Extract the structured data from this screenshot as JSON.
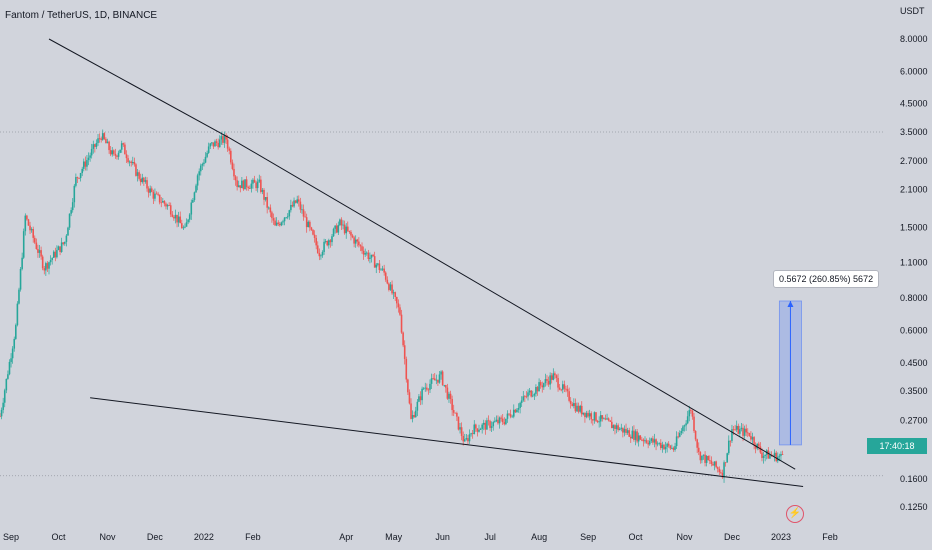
{
  "header": {
    "symbol": "Fantom / TetherUS, 1D, BINANCE",
    "currency": "USDT"
  },
  "chart_data": {
    "type": "candlestick",
    "scale": "log",
    "y_ticks": [
      "8.0000",
      "6.0000",
      "4.5000",
      "3.5000",
      "2.7000",
      "2.1000",
      "1.5000",
      "1.1000",
      "0.8000",
      "0.6000",
      "0.4500",
      "0.3500",
      "0.2700",
      "0.1600",
      "0.1250"
    ],
    "y_tick_values": [
      8.0,
      6.0,
      4.5,
      3.5,
      2.7,
      2.1,
      1.5,
      1.1,
      0.8,
      0.6,
      0.45,
      0.35,
      0.27,
      0.16,
      0.125
    ],
    "x_ticks": [
      "Sep",
      "Oct",
      "Nov",
      "Dec",
      "2022",
      "Feb",
      "Apr",
      "May",
      "Jun",
      "Jul",
      "Aug",
      "Sep",
      "Oct",
      "Nov",
      "Dec",
      "2023",
      "Feb"
    ],
    "x_tick_dates": [
      "2021-09-01",
      "2021-10-01",
      "2021-11-01",
      "2021-12-01",
      "2022-01-01",
      "2022-02-01",
      "2022-04-01",
      "2022-05-01",
      "2022-06-01",
      "2022-07-01",
      "2022-08-01",
      "2022-09-01",
      "2022-10-01",
      "2022-11-01",
      "2022-12-01",
      "2023-01-01",
      "2023-02-01"
    ],
    "price_path": [
      [
        "2021-08-25",
        0.28
      ],
      [
        "2021-09-04",
        0.62
      ],
      [
        "2021-09-10",
        1.65
      ],
      [
        "2021-09-22",
        1.05
      ],
      [
        "2021-10-05",
        1.32
      ],
      [
        "2021-10-12",
        2.3
      ],
      [
        "2021-10-28",
        3.4
      ],
      [
        "2021-11-05",
        2.8
      ],
      [
        "2021-11-10",
        3.1
      ],
      [
        "2021-11-20",
        2.4
      ],
      [
        "2021-11-30",
        2.0
      ],
      [
        "2021-12-10",
        1.8
      ],
      [
        "2021-12-20",
        1.45
      ],
      [
        "2021-12-28",
        2.4
      ],
      [
        "2022-01-05",
        3.1
      ],
      [
        "2022-01-15",
        3.3
      ],
      [
        "2022-01-22",
        2.2
      ],
      [
        "2022-02-05",
        2.2
      ],
      [
        "2022-02-15",
        1.5
      ],
      [
        "2022-03-01",
        1.9
      ],
      [
        "2022-03-15",
        1.2
      ],
      [
        "2022-03-28",
        1.55
      ],
      [
        "2022-04-08",
        1.3
      ],
      [
        "2022-04-25",
        1.0
      ],
      [
        "2022-05-05",
        0.7
      ],
      [
        "2022-05-12",
        0.27
      ],
      [
        "2022-05-20",
        0.36
      ],
      [
        "2022-05-31",
        0.4
      ],
      [
        "2022-06-15",
        0.22
      ],
      [
        "2022-06-20",
        0.25
      ],
      [
        "2022-07-10",
        0.27
      ],
      [
        "2022-07-25",
        0.34
      ],
      [
        "2022-08-10",
        0.4
      ],
      [
        "2022-08-25",
        0.3
      ],
      [
        "2022-09-15",
        0.26
      ],
      [
        "2022-10-05",
        0.23
      ],
      [
        "2022-10-25",
        0.21
      ],
      [
        "2022-11-05",
        0.3
      ],
      [
        "2022-11-10",
        0.2
      ],
      [
        "2022-11-25",
        0.17
      ],
      [
        "2022-12-01",
        0.25
      ],
      [
        "2022-12-12",
        0.24
      ],
      [
        "2022-12-20",
        0.2
      ],
      [
        "2023-01-01",
        0.195
      ],
      [
        "2023-01-03",
        0.205
      ]
    ],
    "annotations": {
      "horizontal_line_top": 3.5,
      "horizontal_line_bottom": 0.165,
      "resistance_line": [
        [
          "2021-09-25",
          8.0
        ],
        [
          "2022-01-18",
          3.3
        ],
        [
          "2023-01-10",
          0.175
        ]
      ],
      "support_line": [
        [
          "2021-10-21",
          0.33
        ],
        [
          "2023-01-15",
          0.15
        ]
      ],
      "measure": {
        "label": "0.5672 (260.85%) 5672",
        "from": 0.217,
        "to": 0.78,
        "start": "2022-12-31",
        "end": "2023-01-14"
      }
    },
    "last_price_badge": "17:40:18",
    "colors": {
      "up": "#26a69a",
      "down": "#ef5350",
      "measure": "#2962ff"
    }
  }
}
